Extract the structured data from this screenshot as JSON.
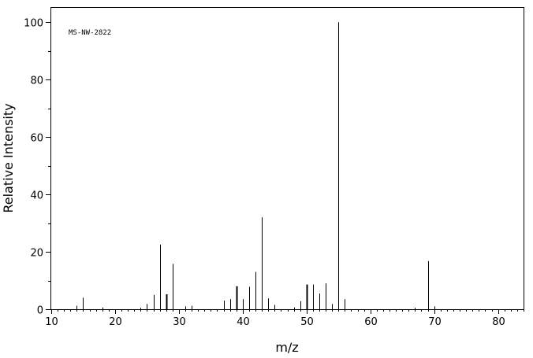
{
  "chart_data": {
    "type": "bar",
    "title": "",
    "annotation": "MS-NW-2822",
    "xlabel": "m/z",
    "ylabel": "Relative Intensity",
    "xlim": [
      10,
      84
    ],
    "ylim": [
      0,
      105
    ],
    "xticks": [
      10,
      20,
      30,
      40,
      50,
      60,
      70,
      80
    ],
    "yticks": [
      0,
      20,
      40,
      60,
      80,
      100
    ],
    "grid": false,
    "legend": "none",
    "peaks": [
      {
        "mz": 14,
        "intensity": 1.2
      },
      {
        "mz": 15,
        "intensity": 4.0
      },
      {
        "mz": 18,
        "intensity": 0.6
      },
      {
        "mz": 24,
        "intensity": 0.5
      },
      {
        "mz": 25,
        "intensity": 1.8
      },
      {
        "mz": 26,
        "intensity": 5.0
      },
      {
        "mz": 27,
        "intensity": 22.5
      },
      {
        "mz": 28,
        "intensity": 5.2
      },
      {
        "mz": 29,
        "intensity": 15.8
      },
      {
        "mz": 31,
        "intensity": 1.0
      },
      {
        "mz": 32,
        "intensity": 1.2
      },
      {
        "mz": 37,
        "intensity": 3.0
      },
      {
        "mz": 38,
        "intensity": 3.5
      },
      {
        "mz": 39,
        "intensity": 8.0
      },
      {
        "mz": 40,
        "intensity": 3.5
      },
      {
        "mz": 41,
        "intensity": 7.8
      },
      {
        "mz": 42,
        "intensity": 13.0
      },
      {
        "mz": 43,
        "intensity": 32.0
      },
      {
        "mz": 44,
        "intensity": 3.8
      },
      {
        "mz": 45,
        "intensity": 1.5
      },
      {
        "mz": 48,
        "intensity": 0.6
      },
      {
        "mz": 49,
        "intensity": 2.8
      },
      {
        "mz": 50,
        "intensity": 8.6
      },
      {
        "mz": 51,
        "intensity": 8.6
      },
      {
        "mz": 52,
        "intensity": 5.5
      },
      {
        "mz": 53,
        "intensity": 9.0
      },
      {
        "mz": 54,
        "intensity": 1.8
      },
      {
        "mz": 55,
        "intensity": 100.0
      },
      {
        "mz": 56,
        "intensity": 3.5
      },
      {
        "mz": 67,
        "intensity": 0.5
      },
      {
        "mz": 69,
        "intensity": 16.8
      },
      {
        "mz": 70,
        "intensity": 1.0
      }
    ]
  }
}
